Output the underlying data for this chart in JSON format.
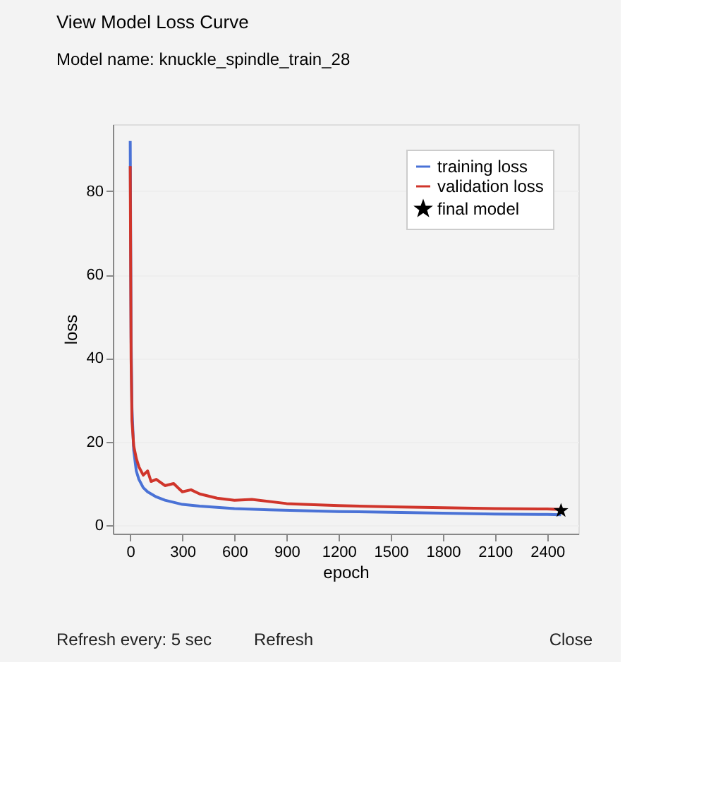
{
  "chart_data": {
    "type": "line",
    "title": "View Model Loss Curve",
    "subtitle": "Model name: knuckle_spindle_train_28",
    "xlabel": "epoch",
    "ylabel": "loss",
    "xlim": [
      -100,
      2580
    ],
    "ylim": [
      -2,
      96
    ],
    "xticks": [
      0,
      300,
      600,
      900,
      1200,
      1500,
      1800,
      2100,
      2400
    ],
    "yticks": [
      0,
      20,
      40,
      60,
      80
    ],
    "grid": "y",
    "legend": "top right",
    "series": [
      {
        "name": "training loss",
        "color": "#4a72d6",
        "x": [
          0,
          5,
          10,
          20,
          35,
          50,
          75,
          100,
          150,
          200,
          300,
          400,
          600,
          800,
          1000,
          1200,
          1500,
          1800,
          2100,
          2400,
          2480
        ],
        "values": [
          92,
          45,
          28,
          18,
          13,
          11,
          9,
          8,
          6.8,
          6,
          5,
          4.6,
          4,
          3.7,
          3.5,
          3.3,
          3.1,
          2.9,
          2.7,
          2.6,
          2.5
        ]
      },
      {
        "name": "validation loss",
        "color": "#d0352b",
        "x": [
          0,
          5,
          10,
          20,
          35,
          50,
          75,
          100,
          120,
          150,
          200,
          250,
          300,
          350,
          400,
          500,
          600,
          700,
          900,
          1000,
          1200,
          1500,
          1800,
          2100,
          2400,
          2480
        ],
        "values": [
          86,
          40,
          25,
          19,
          16,
          14,
          12,
          13,
          10.5,
          11,
          9.5,
          10,
          8,
          8.5,
          7.5,
          6.5,
          6,
          6.2,
          5.2,
          5,
          4.7,
          4.4,
          4.2,
          4,
          3.9,
          3.8
        ]
      },
      {
        "name": "final model",
        "type": "scatter",
        "marker": "star",
        "color": "#000000",
        "x": [
          2480
        ],
        "values": [
          3.5
        ]
      }
    ],
    "annotations": [
      "Refresh every: 5 sec",
      "Refresh",
      "Close"
    ]
  }
}
